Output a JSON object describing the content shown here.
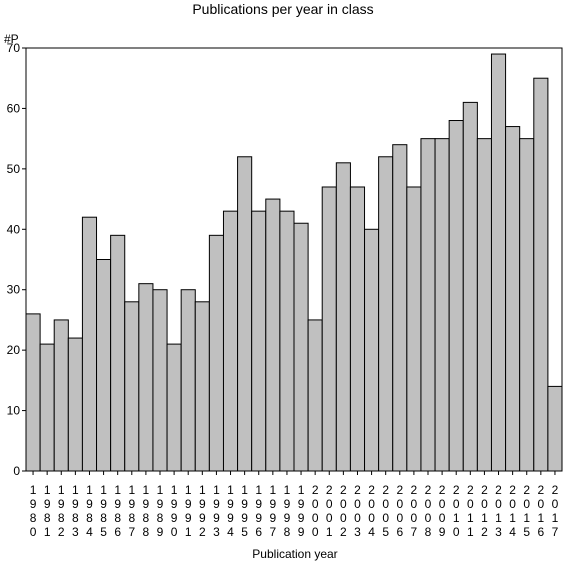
{
  "chart_data": {
    "type": "bar",
    "title": "Publications per year in class",
    "ylabel": "#P",
    "xlabel": "Publication year",
    "ylim": [
      0,
      70
    ],
    "yticks": [
      0,
      10,
      20,
      30,
      40,
      50,
      60,
      70
    ],
    "grid": false,
    "legend": "none",
    "bar_color": "#c0c0c0",
    "edge_color": "#000000",
    "categories": [
      "1980",
      "1981",
      "1982",
      "1983",
      "1984",
      "1985",
      "1986",
      "1987",
      "1988",
      "1989",
      "1990",
      "1991",
      "1992",
      "1993",
      "1994",
      "1995",
      "1996",
      "1997",
      "1998",
      "1999",
      "2000",
      "2001",
      "2002",
      "2003",
      "2004",
      "2005",
      "2006",
      "2007",
      "2008",
      "2009",
      "2010",
      "2011",
      "2012",
      "2013",
      "2014",
      "2015",
      "2016",
      "2017"
    ],
    "values": [
      26,
      21,
      25,
      22,
      42,
      35,
      39,
      28,
      31,
      30,
      21,
      30,
      28,
      39,
      43,
      52,
      43,
      45,
      43,
      41,
      25,
      47,
      51,
      47,
      40,
      52,
      54,
      47,
      55,
      55,
      58,
      61,
      55,
      69,
      57,
      55,
      65,
      14
    ]
  }
}
